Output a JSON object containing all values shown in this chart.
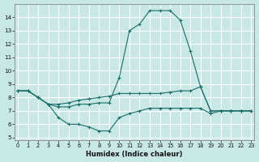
{
  "xlabel": "Humidex (Indice chaleur)",
  "bg_color": "#c8e8e5",
  "line_color": "#1a6e68",
  "grid_color": "#ffffff",
  "xlim": [
    -0.3,
    23.3
  ],
  "ylim": [
    4.8,
    15.0
  ],
  "xticks": [
    0,
    1,
    2,
    3,
    4,
    5,
    6,
    7,
    8,
    9,
    10,
    11,
    12,
    13,
    14,
    15,
    16,
    17,
    18,
    19,
    20,
    21,
    22,
    23
  ],
  "yticks": [
    5,
    6,
    7,
    8,
    9,
    10,
    11,
    12,
    13,
    14
  ],
  "lines": [
    {
      "x": [
        0,
        1,
        2,
        3,
        4,
        5,
        6,
        7,
        8,
        9,
        10,
        11,
        12,
        13,
        14,
        15,
        16,
        17,
        18,
        19,
        20,
        21,
        22,
        23
      ],
      "y": [
        8.5,
        8.5,
        8.0,
        7.5,
        7.3,
        7.3,
        7.5,
        7.5,
        7.6,
        7.6,
        9.5,
        13.0,
        13.5,
        14.5,
        14.5,
        14.5,
        13.8,
        11.5,
        8.8,
        7.0,
        7.0,
        7.0,
        7.0,
        7.0
      ]
    },
    {
      "x": [
        0,
        1,
        2,
        3,
        4,
        5,
        6,
        7,
        8,
        9,
        10,
        11,
        12,
        13,
        14,
        15,
        16,
        17,
        18,
        19,
        20,
        21,
        22,
        23
      ],
      "y": [
        8.5,
        8.5,
        8.0,
        7.5,
        7.5,
        7.6,
        7.8,
        7.9,
        8.0,
        8.1,
        8.3,
        8.3,
        8.3,
        8.3,
        8.3,
        8.4,
        8.5,
        8.5,
        8.8,
        7.0,
        7.0,
        7.0,
        7.0,
        7.0
      ]
    },
    {
      "x": [
        0,
        1,
        2,
        3,
        4,
        5,
        6,
        7,
        8,
        9,
        10,
        11,
        12,
        13,
        14,
        15,
        16,
        17,
        18,
        19,
        20,
        21,
        22,
        23
      ],
      "y": [
        8.5,
        8.5,
        8.0,
        7.5,
        6.5,
        6.0,
        6.0,
        5.8,
        5.5,
        5.5,
        6.5,
        6.8,
        7.0,
        7.2,
        7.2,
        7.2,
        7.2,
        7.2,
        7.2,
        6.8,
        7.0,
        7.0,
        7.0,
        7.0
      ]
    }
  ]
}
